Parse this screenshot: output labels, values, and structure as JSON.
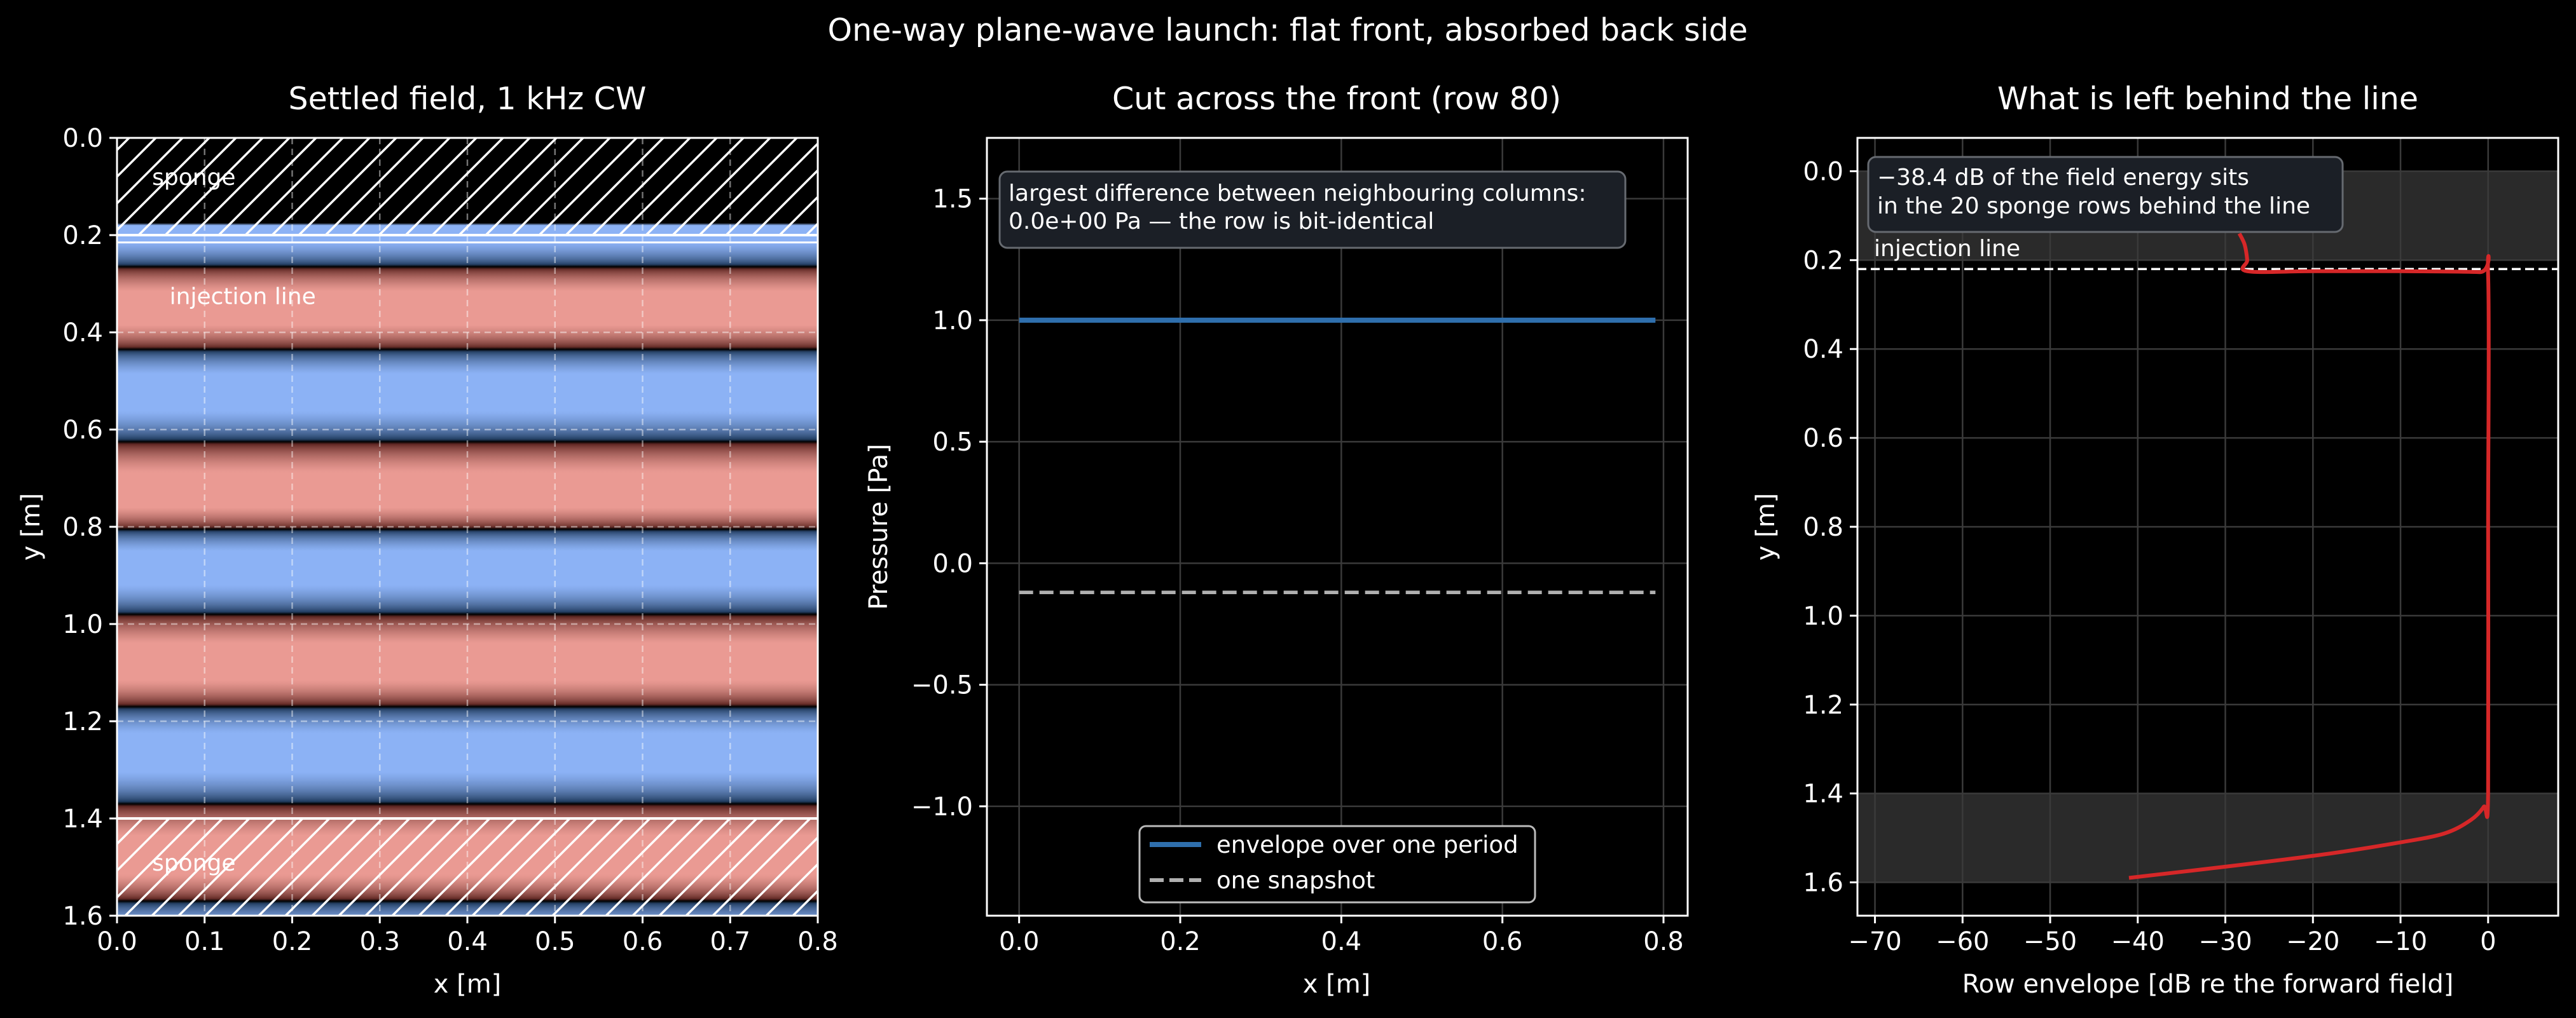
{
  "suptitle": "One-way plane-wave launch: flat front, absorbed back side",
  "colors": {
    "background": "#000000",
    "axis": "#ffffff",
    "grid": "#3a3a3a",
    "envelope_line": "#2f6fad",
    "snapshot_line": "#b0b0b0",
    "row_envelope_line": "#d62728",
    "band_blue": "#8cb2f5",
    "band_pink": "#ea9a93",
    "sponge_shade": "#2a2a2a",
    "annotation_box": "#1b1f26"
  },
  "chart_data": [
    {
      "type": "heatmap",
      "title": "Settled field, 1 kHz CW",
      "xlabel": "x [m]",
      "ylabel": "y [m]",
      "xlim": [
        0.0,
        0.8
      ],
      "ylim": [
        1.6,
        0.0
      ],
      "xticks": [
        "0.0",
        "0.1",
        "0.2",
        "0.3",
        "0.4",
        "0.5",
        "0.6",
        "0.7",
        "0.8"
      ],
      "yticks": [
        "0.0",
        "0.2",
        "0.4",
        "0.6",
        "0.8",
        "1.0",
        "1.2",
        "1.4",
        "1.6"
      ],
      "grid": true,
      "field_description": "horizontal stripes, uniform in x",
      "wave_centers_y": {
        "pink": [
          0.35,
          0.73,
          1.08,
          1.48
        ],
        "blue": [
          0.52,
          0.88,
          1.26
        ]
      },
      "sponge_regions": [
        [
          0.0,
          0.2
        ],
        [
          1.4,
          1.6
        ]
      ],
      "injection_line_y": 0.215,
      "annotations": [
        {
          "text": "sponge",
          "x": 0.04,
          "y": 0.08
        },
        {
          "text": "injection line",
          "x": 0.06,
          "y": 0.325
        },
        {
          "text": "sponge",
          "x": 0.04,
          "y": 1.49
        }
      ]
    },
    {
      "type": "line",
      "title": "Cut across the front (row 80)",
      "xlabel": "x [m]",
      "ylabel": "Pressure [Pa]",
      "xlim": [
        -0.04,
        0.83
      ],
      "ylim": [
        -1.45,
        1.75
      ],
      "xticks": [
        "0.0",
        "0.2",
        "0.4",
        "0.6",
        "0.8"
      ],
      "yticks": [
        "1.5",
        "1.0",
        "0.5",
        "0.0",
        "−0.5",
        "−1.0"
      ],
      "grid": true,
      "series": [
        {
          "name": "envelope over one period",
          "x": [
            0.0,
            0.79
          ],
          "y": [
            1.0,
            1.0
          ],
          "style": "solid"
        },
        {
          "name": "one snapshot",
          "x": [
            0.0,
            0.79
          ],
          "y": [
            -0.12,
            -0.12
          ],
          "style": "dashed"
        }
      ],
      "annotation": [
        "largest difference between neighbouring columns:",
        "0.0e+00 Pa — the row is bit-identical"
      ],
      "legend_position": "bottom-center"
    },
    {
      "type": "line",
      "title": "What is left behind the line",
      "xlabel": "Row envelope [dB re the forward field]",
      "ylabel": "y [m]",
      "xlim": [
        -72,
        8
      ],
      "ylim": [
        1.675,
        -0.075
      ],
      "xticks": [
        "−70",
        "−60",
        "−50",
        "−40",
        "−30",
        "−20",
        "−10",
        "0"
      ],
      "yticks": [
        "0.0",
        "0.2",
        "0.4",
        "0.6",
        "0.8",
        "1.0",
        "1.2",
        "1.4",
        "1.6"
      ],
      "grid": true,
      "shaded_regions_y": [
        [
          0.0,
          0.2
        ],
        [
          1.4,
          1.6
        ]
      ],
      "injection_line_y": 0.22,
      "injection_label": "injection line",
      "series": [
        {
          "name": "",
          "x": [
            -28.4,
            -27.8,
            -27.5,
            -27.5,
            -20,
            -10,
            -1,
            0,
            0,
            0,
            -0.5,
            -2,
            -5,
            -10,
            -18,
            -28,
            -41
          ],
          "y": [
            0.14,
            0.165,
            0.2,
            0.225,
            0.225,
            0.225,
            0.227,
            0.235,
            0.8,
            1.4,
            1.43,
            1.46,
            1.49,
            1.51,
            1.535,
            1.56,
            1.59
          ]
        }
      ],
      "annotation": [
        "−38.4 dB of the field energy sits",
        "in the 20 sponge rows behind the line"
      ]
    }
  ]
}
